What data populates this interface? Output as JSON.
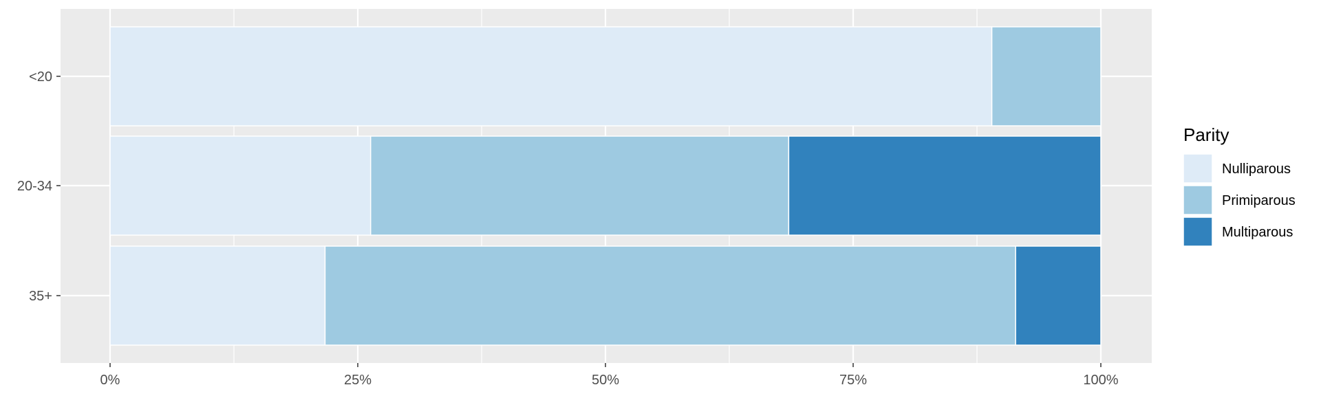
{
  "chart_data": {
    "type": "bar",
    "orientation": "horizontal",
    "stacked": true,
    "normalized": true,
    "categories": [
      "<20",
      "20-34",
      "35+"
    ],
    "series": [
      {
        "name": "Nulliparous",
        "color": "#deebf7",
        "values": [
          0.89,
          0.263,
          0.217
        ]
      },
      {
        "name": "Primiparous",
        "color": "#9ecae1",
        "values": [
          0.11,
          0.422,
          0.697
        ]
      },
      {
        "name": "Multiparous",
        "color": "#3182bd",
        "values": [
          0.0,
          0.315,
          0.086
        ]
      }
    ],
    "x_ticks": [
      {
        "value": 0,
        "label": "0%"
      },
      {
        "value": 0.25,
        "label": "25%"
      },
      {
        "value": 0.5,
        "label": "50%"
      },
      {
        "value": 0.75,
        "label": "75%"
      },
      {
        "value": 1,
        "label": "100%"
      }
    ],
    "xlim": [
      0,
      1
    ],
    "xlabel": "",
    "ylabel": "",
    "grid": true,
    "legend": {
      "title": "Parity",
      "position": "right"
    }
  },
  "style": {
    "panel_background": "#ebebeb",
    "grid_color": "#ffffff",
    "tick_color": "#333333"
  }
}
